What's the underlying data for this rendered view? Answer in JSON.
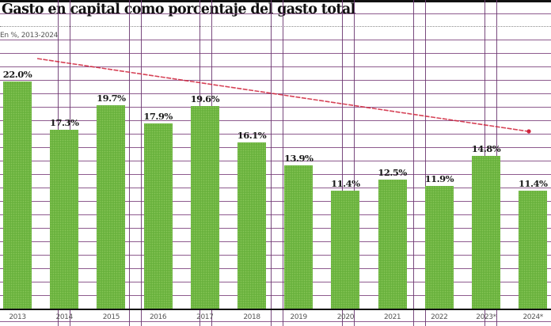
{
  "header": {
    "title": "Gasto en capital como porcentaje del gasto total",
    "subtitle": "En %, 2013-2024"
  },
  "colors": {
    "bar": "#6ab23e",
    "trend": "#d0223a",
    "grid": "#7a3e7a",
    "axis": "#111111"
  },
  "chart_data": {
    "type": "bar",
    "title": "Gasto en capital como porcentaje del gasto total",
    "subtitle": "En %, 2013-2024",
    "xlabel": "",
    "ylabel": "%",
    "categories": [
      "2013",
      "2014",
      "2015",
      "2016",
      "2017",
      "2018",
      "2019",
      "2020",
      "2021",
      "2022",
      "2023",
      "2024"
    ],
    "category_labels": [
      "2013",
      "2014",
      "2015",
      "2016",
      "2017",
      "2018",
      "2019",
      "2020",
      "2021",
      "2022",
      "2023*",
      "2024*"
    ],
    "values": [
      22.0,
      17.3,
      19.7,
      17.9,
      19.6,
      16.1,
      13.9,
      11.4,
      12.5,
      11.9,
      14.8,
      11.4
    ],
    "value_labels": [
      "22.0%",
      "17.3%",
      "19.7%",
      "17.9%",
      "19.6%",
      "16.1%",
      "13.9%",
      "11.4%",
      "12.5%",
      "11.9%",
      "14.8%",
      "11.4%"
    ],
    "ylim": [
      0,
      22
    ],
    "grid": true,
    "legend": null,
    "annotations": [
      "Downward red trend arrow from 2013 to 2024"
    ]
  }
}
